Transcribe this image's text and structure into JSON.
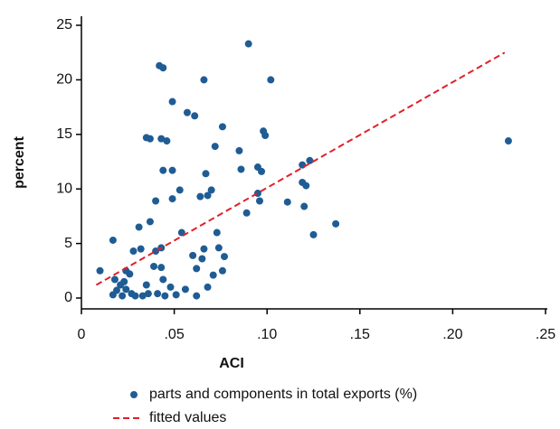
{
  "chart_data": {
    "type": "scatter",
    "x_label": "ACI",
    "y_label": "percent",
    "xlim": [
      0,
      0.25
    ],
    "ylim": [
      0,
      25
    ],
    "xticks": [
      0,
      {
        "value": 0.05,
        "label": ".05"
      },
      {
        "value": 0.1,
        "label": ".10"
      },
      {
        "value": 0.15,
        "label": ".15"
      },
      {
        "value": 0.2,
        "label": ".20"
      },
      {
        "value": 0.25,
        "label": ".25"
      }
    ],
    "yticks": [
      0,
      5,
      10,
      15,
      20,
      25
    ],
    "grid": false,
    "series": [
      {
        "name": "parts and components in total exports (%)",
        "type": "scatter",
        "color": "#1f5c94",
        "x": [
          0.01,
          0.017,
          0.018,
          0.017,
          0.019,
          0.021,
          0.022,
          0.023,
          0.024,
          0.024,
          0.026,
          0.027,
          0.028,
          0.029,
          0.031,
          0.032,
          0.033,
          0.035,
          0.035,
          0.037,
          0.037,
          0.036,
          0.039,
          0.04,
          0.04,
          0.041,
          0.042,
          0.043,
          0.043,
          0.043,
          0.044,
          0.044,
          0.044,
          0.046,
          0.045,
          0.048,
          0.049,
          0.049,
          0.049,
          0.051,
          0.053,
          0.054,
          0.056,
          0.057,
          0.06,
          0.061,
          0.062,
          0.062,
          0.064,
          0.065,
          0.066,
          0.066,
          0.067,
          0.068,
          0.068,
          0.07,
          0.071,
          0.072,
          0.073,
          0.074,
          0.076,
          0.077,
          0.076,
          0.085,
          0.086,
          0.089,
          0.09,
          0.095,
          0.095,
          0.096,
          0.097,
          0.098,
          0.099,
          0.102,
          0.111,
          0.119,
          0.119,
          0.121,
          0.12,
          0.123,
          0.125,
          0.137,
          0.23
        ],
        "values": [
          2.5,
          5.3,
          1.7,
          0.3,
          0.7,
          1.2,
          0.2,
          1.5,
          2.5,
          0.8,
          2.2,
          0.4,
          4.3,
          0.2,
          6.5,
          4.5,
          0.2,
          1.2,
          14.7,
          14.6,
          7.0,
          0.4,
          2.9,
          8.9,
          4.3,
          0.4,
          21.3,
          14.6,
          4.6,
          2.8,
          21.1,
          11.7,
          1.7,
          14.4,
          0.2,
          1.0,
          18.0,
          11.7,
          9.1,
          0.3,
          9.9,
          6.0,
          0.8,
          17.0,
          3.9,
          16.7,
          2.7,
          0.2,
          9.3,
          3.6,
          20.0,
          4.5,
          11.4,
          1.0,
          9.4,
          9.9,
          2.1,
          13.9,
          6.0,
          4.6,
          15.7,
          3.8,
          2.5,
          13.5,
          11.8,
          7.8,
          23.3,
          12.0,
          9.6,
          8.9,
          11.6,
          15.3,
          14.9,
          20.0,
          8.8,
          10.6,
          12.2,
          10.3,
          8.4,
          12.6,
          5.8,
          6.8,
          14.4
        ]
      },
      {
        "name": "fitted values",
        "type": "line",
        "color": "#e0202a",
        "x": [
          0.008,
          0.228
        ],
        "values": [
          1.2,
          22.5
        ]
      }
    ]
  }
}
